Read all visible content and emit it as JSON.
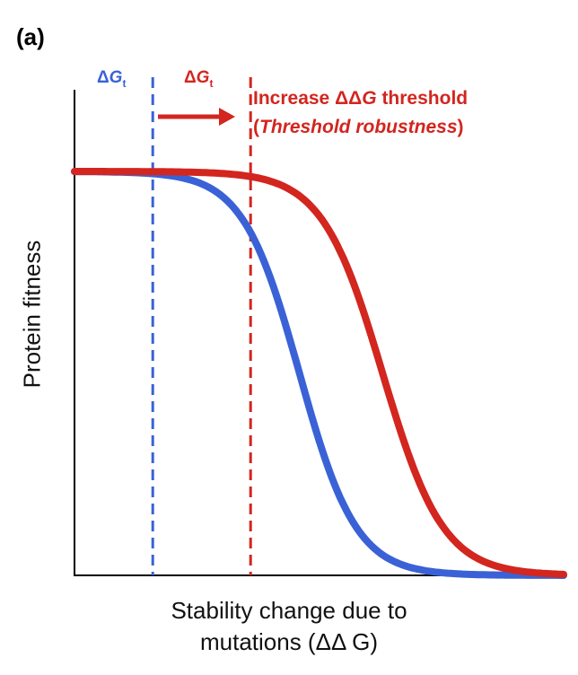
{
  "panel_label": "(a)",
  "colors": {
    "blue": "#3a62d6",
    "red": "#d2261f",
    "axis": "#000000"
  },
  "chart_data": {
    "type": "line",
    "title": "",
    "ylabel": "Protein fitness",
    "xlabel_line1": "Stability change due to",
    "xlabel_line2": "mutations (ΔΔ G)",
    "xlim": [
      0,
      10
    ],
    "ylim": [
      0,
      1
    ],
    "grid": false,
    "series": [
      {
        "color": "blue",
        "threshold": 1.6,
        "midpoint": 4.6,
        "steepness": 0.58
      },
      {
        "color": "red",
        "threshold": 3.6,
        "midpoint": 6.3,
        "steepness": 0.62
      }
    ],
    "threshold_labels": [
      {
        "symbol": "Δ",
        "letter": "G",
        "subscript": "t"
      },
      {
        "symbol": "Δ",
        "letter": "G",
        "subscript": "t"
      }
    ],
    "annotation": {
      "line1_prefix": "Increase ΔΔ",
      "line1_italic": "G",
      "line1_suffix": " threshold",
      "line2_open": "(",
      "line2_italic": "Threshold robustness",
      "line2_close": ")"
    }
  }
}
